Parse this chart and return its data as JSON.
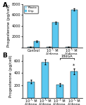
{
  "panel_A": {
    "categories": [
      "Control",
      "10⁻⁷ M\nA’dione",
      "10⁻⁵ M\nA’dione"
    ],
    "plastic_values": [
      100,
      100,
      100
    ],
    "drip_values": [
      1100,
      4600,
      7000
    ],
    "drip_errors": [
      120,
      180,
      200
    ],
    "plastic_errors": [
      30,
      30,
      30
    ],
    "ylim": [
      0,
      8000
    ],
    "yticks": [
      0,
      2000,
      4000,
      6000,
      8000
    ],
    "ylabel": "Progesterone (pg/cell)",
    "bar_color_plastic": "#aee0f5",
    "bar_color_drip": "#5bc8f0",
    "label": "A"
  },
  "panel_B": {
    "categories": [
      "10⁻⁷ M\nA’dione",
      "10⁻⁵ M\nA’dione",
      "10⁻⁷ M\nA’dione",
      "10⁻⁵ M\nA’dione"
    ],
    "values": [
      260,
      580,
      210,
      430
    ],
    "errors": [
      25,
      35,
      20,
      45
    ],
    "ylim": [
      0,
      700
    ],
    "yticks": [
      0,
      200,
      400,
      600
    ],
    "ylabel": "Progesterone (pg/cell)",
    "bar_color": "#5bc8f0",
    "bracket_label": "18αGA",
    "label": "B"
  },
  "background_color": "#ffffff",
  "legend_plastic": "Plastic",
  "legend_drip": "Drip",
  "tick_fontsize": 3.5,
  "label_fontsize": 4.0,
  "panel_label_fontsize": 6.5
}
